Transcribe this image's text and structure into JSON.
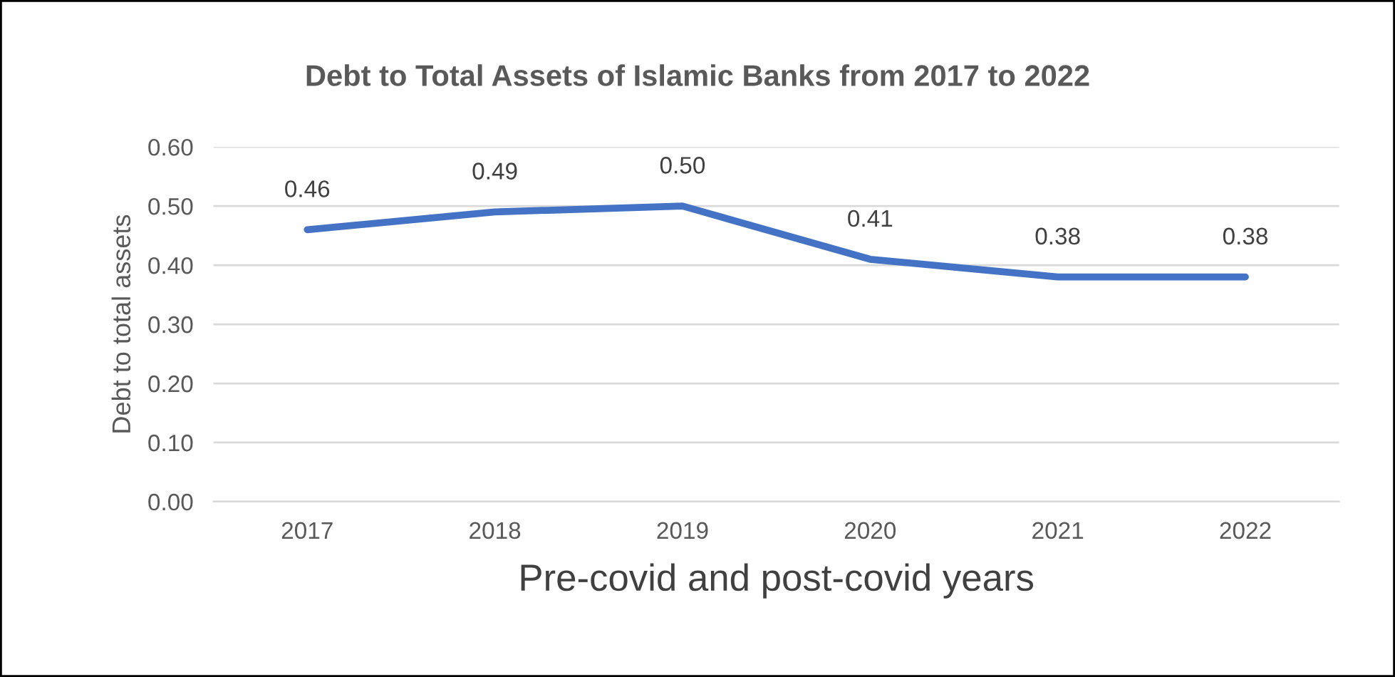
{
  "chart_data": {
    "type": "line",
    "title": "Debt to Total Assets of Islamic Banks from 2017 to 2022",
    "xlabel": "Pre-covid and post-covid years",
    "ylabel": "Debt to total assets",
    "categories": [
      "2017",
      "2018",
      "2019",
      "2020",
      "2021",
      "2022"
    ],
    "series": [
      {
        "color": "#4472c4",
        "values": [
          0.46,
          0.49,
          0.5,
          0.41,
          0.38,
          0.38
        ],
        "value_labels": [
          "0.46",
          "0.49",
          "0.50",
          "0.41",
          "0.38",
          "0.38"
        ]
      }
    ],
    "ylim": [
      0,
      0.6
    ],
    "yticks": [
      {
        "value": 0,
        "label": "0.00"
      },
      {
        "value": 0.1,
        "label": "0.10"
      },
      {
        "value": 0.2,
        "label": "0.20"
      },
      {
        "value": 0.3,
        "label": "0.30"
      },
      {
        "value": 0.4,
        "label": "0.40"
      },
      {
        "value": 0.5,
        "label": "0.50"
      },
      {
        "value": 0.6,
        "label": "0.60"
      }
    ],
    "grid": "y",
    "legend": false,
    "marker": "none",
    "line_style": "solid"
  }
}
